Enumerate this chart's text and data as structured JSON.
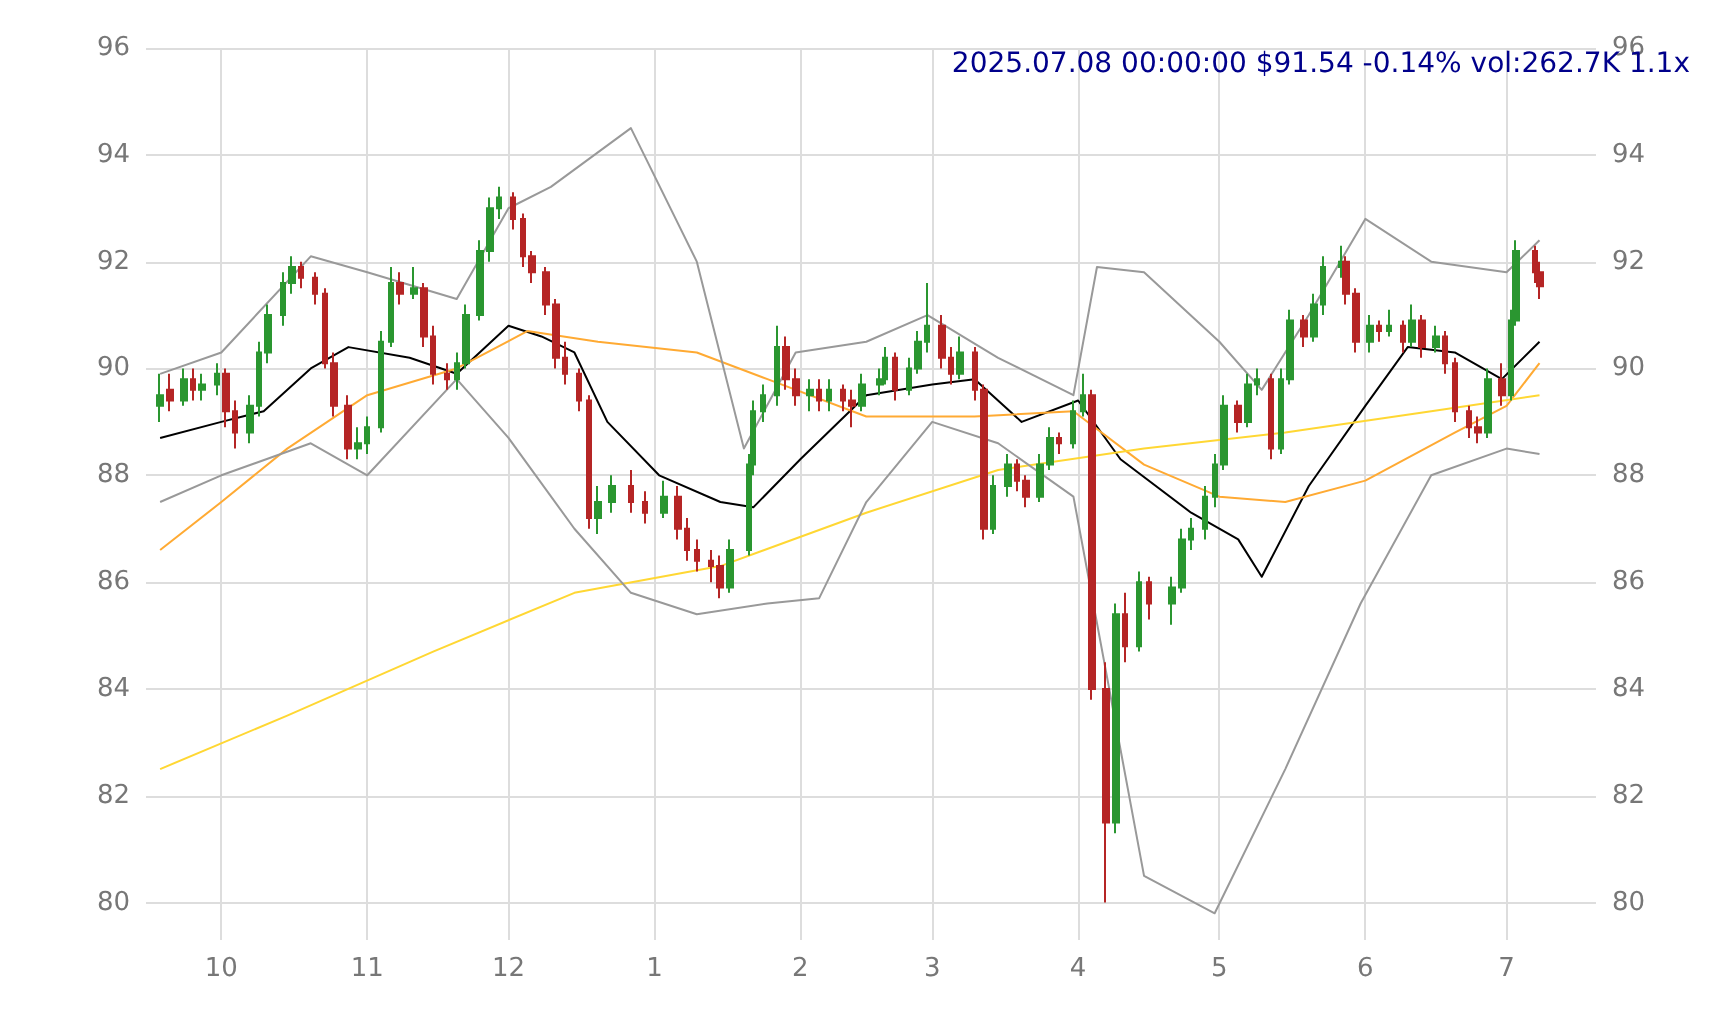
{
  "chart_data": {
    "type": "candlestick",
    "title": "2025.07.08 00:00:00 $91.54 -0.14% vol:262.7K 1.1x",
    "colors": [
      "#2a9630",
      "#b52525",
      "#2a9630",
      "#b52525",
      "#2a9630",
      "#2a9630",
      "#b52525",
      "#b52525",
      "#2a9630",
      "#2a9630",
      "#2a9630",
      "#2a9630",
      "#2a9630",
      "#b52525",
      "#b52525",
      "#b52525",
      "#b52525",
      "#b52525",
      "#2a9630",
      "#2a9630",
      "#2a9630",
      "#2a9630",
      "#b52525",
      "#2a9630",
      "#b52525",
      "#b52525",
      "#b52525",
      "#2a9630",
      "#2a9630",
      "#2a9630",
      "#2a9630",
      "#2a9630",
      "#b52525",
      "#b52525",
      "#b52525",
      "#b52525",
      "#b52525",
      "#b52525",
      "#b52525",
      "#b52525",
      "#2a9630",
      "#2a9630",
      "#b52525",
      "#b52525",
      "#2a9630",
      "#b52525",
      "#b52525",
      "#b52525",
      "#b52525",
      "#b52525",
      "#2a9630",
      "#2a9630",
      "#2a9630",
      "#2a9630",
      "#2a9630",
      "#b52525",
      "#b52525",
      "#2a9630",
      "#b52525",
      "#2a9630",
      "#b52525",
      "#b52525",
      "#2a9630",
      "#2a9630",
      "#2a9630",
      "#b52525",
      "#2a9630",
      "#2a9630",
      "#2a9630",
      "#b52525",
      "#b52525",
      "#2a9630",
      "#b52525",
      "#b52525",
      "#2a9630",
      "#2a9630",
      "#b52525",
      "#b52525",
      "#2a9630",
      "#2a9630",
      "#b52525",
      "#2a9630",
      "#2a9630",
      "#b52525",
      "#b52525",
      "#2a9630",
      "#b52525",
      "#2a9630",
      "#b52525",
      "#2a9630",
      "#2a9630",
      "#2a9630",
      "#2a9630",
      "#2a9630",
      "#2a9630",
      "#b52525",
      "#2a9630",
      "#2a9630",
      "#b52525",
      "#2a9630",
      "#2a9630",
      "#b52525",
      "#2a9630",
      "#2a9630",
      "#2a9630",
      "#b52525",
      "#b52525",
      "#2a9630",
      "#b52525",
      "#2a9630",
      "#b52525",
      "#2a9630",
      "#b52525",
      "#2a9630",
      "#b52525",
      "#b52525",
      "#b52525",
      "#b52525",
      "#2a9630",
      "#b52525",
      "#2a9630",
      "#2a9630",
      "#b52525",
      "#b52525"
    ],
    "x": [
      "2024-09-18",
      "2024-09-20",
      "2024-09-23",
      "2024-09-25",
      "2024-09-27",
      "2024-09-30",
      "2024-10-02",
      "2024-10-04",
      "2024-10-07",
      "2024-10-09",
      "2024-10-11",
      "2024-10-14",
      "2024-10-16",
      "2024-10-18",
      "2024-10-21",
      "2024-10-23",
      "2024-10-25",
      "2024-10-28",
      "2024-10-30",
      "2024-11-01",
      "2024-11-04",
      "2024-11-06",
      "2024-11-08",
      "2024-11-11",
      "2024-11-13",
      "2024-11-15",
      "2024-11-18",
      "2024-11-20",
      "2024-11-22",
      "2024-11-25",
      "2024-11-27",
      "2024-11-29",
      "2024-12-02",
      "2024-12-04",
      "2024-12-06",
      "2024-12-09",
      "2024-12-11",
      "2024-12-13",
      "2024-12-16",
      "2024-12-18",
      "2024-12-20",
      "2024-12-23",
      "2024-12-27",
      "2024-12-30",
      "2025-01-03",
      "2025-01-06",
      "2025-01-08",
      "2025-01-10",
      "2025-01-13",
      "2025-01-15",
      "2025-01-17",
      "2025-01-21",
      "2025-01-22",
      "2025-01-24",
      "2025-01-27",
      "2025-01-29",
      "2025-01-31",
      "2025-02-03",
      "2025-02-05",
      "2025-02-07",
      "2025-02-10",
      "2025-02-12",
      "2025-02-14",
      "2025-02-18",
      "2025-02-19",
      "2025-02-21",
      "2025-02-24",
      "2025-02-26",
      "2025-02-28",
      "2025-03-03",
      "2025-03-05",
      "2025-03-07",
      "2025-03-10",
      "2025-03-12",
      "2025-03-14",
      "2025-03-17",
      "2025-03-19",
      "2025-03-21",
      "2025-03-24",
      "2025-03-26",
      "2025-03-28",
      "2025-03-31",
      "2025-04-02",
      "2025-04-04",
      "2025-04-07",
      "2025-04-09",
      "2025-04-11",
      "2025-04-14",
      "2025-04-16",
      "2025-04-21",
      "2025-04-23",
      "2025-04-25",
      "2025-04-28",
      "2025-04-30",
      "2025-05-02",
      "2025-05-05",
      "2025-05-07",
      "2025-05-09",
      "2025-05-12",
      "2025-05-14",
      "2025-05-16",
      "2025-05-19",
      "2025-05-21",
      "2025-05-23",
      "2025-05-27",
      "2025-05-28",
      "2025-05-30",
      "2025-06-02",
      "2025-06-04",
      "2025-06-06",
      "2025-06-09",
      "2025-06-11",
      "2025-06-13",
      "2025-06-16",
      "2025-06-18",
      "2025-06-20",
      "2025-06-23",
      "2025-06-25",
      "2025-06-27",
      "2025-06-30",
      "2025-07-02",
      "2025-07-03",
      "2025-07-07",
      "2025-07-08"
    ],
    "ohlc": [
      [
        89.3,
        89.9,
        89.0,
        89.5
      ],
      [
        89.6,
        89.9,
        89.2,
        89.4
      ],
      [
        89.4,
        90.0,
        89.3,
        89.8
      ],
      [
        89.8,
        90.0,
        89.4,
        89.6
      ],
      [
        89.6,
        89.9,
        89.4,
        89.7
      ],
      [
        89.7,
        90.1,
        89.5,
        89.9
      ],
      [
        89.9,
        90.0,
        88.9,
        89.2
      ],
      [
        89.2,
        89.4,
        88.5,
        88.8
      ],
      [
        88.8,
        89.5,
        88.6,
        89.3
      ],
      [
        89.3,
        90.5,
        89.1,
        90.3
      ],
      [
        90.3,
        91.2,
        90.1,
        91.0
      ],
      [
        91.0,
        91.8,
        90.8,
        91.6
      ],
      [
        91.6,
        92.1,
        91.4,
        91.9
      ],
      [
        91.9,
        92.0,
        91.5,
        91.7
      ],
      [
        91.7,
        91.8,
        91.2,
        91.4
      ],
      [
        91.4,
        91.5,
        90.0,
        90.1
      ],
      [
        90.1,
        90.3,
        89.1,
        89.3
      ],
      [
        89.3,
        89.5,
        88.3,
        88.5
      ],
      [
        88.5,
        88.9,
        88.3,
        88.6
      ],
      [
        88.6,
        89.1,
        88.4,
        88.9
      ],
      [
        88.9,
        90.7,
        88.8,
        90.5
      ],
      [
        90.5,
        91.9,
        90.4,
        91.6
      ],
      [
        91.6,
        91.8,
        91.2,
        91.4
      ],
      [
        91.4,
        91.9,
        91.3,
        91.5
      ],
      [
        91.5,
        91.6,
        90.4,
        90.6
      ],
      [
        90.6,
        90.8,
        89.7,
        89.9
      ],
      [
        89.9,
        90.1,
        89.6,
        89.8
      ],
      [
        89.8,
        90.3,
        89.6,
        90.1
      ],
      [
        90.1,
        91.2,
        90.0,
        91.0
      ],
      [
        91.0,
        92.4,
        90.9,
        92.2
      ],
      [
        92.2,
        93.2,
        92.0,
        93.0
      ],
      [
        93.0,
        93.4,
        92.8,
        93.2
      ],
      [
        93.2,
        93.3,
        92.6,
        92.8
      ],
      [
        92.8,
        92.9,
        91.9,
        92.1
      ],
      [
        92.1,
        92.2,
        91.6,
        91.8
      ],
      [
        91.8,
        91.9,
        91.0,
        91.2
      ],
      [
        91.2,
        91.3,
        90.0,
        90.2
      ],
      [
        90.2,
        90.5,
        89.7,
        89.9
      ],
      [
        89.9,
        90.0,
        89.2,
        89.4
      ],
      [
        89.4,
        89.5,
        87.0,
        87.2
      ],
      [
        87.2,
        87.8,
        86.9,
        87.5
      ],
      [
        87.5,
        88.0,
        87.3,
        87.8
      ],
      [
        87.8,
        88.1,
        87.3,
        87.5
      ],
      [
        87.5,
        87.7,
        87.1,
        87.3
      ],
      [
        87.3,
        87.9,
        87.2,
        87.6
      ],
      [
        87.6,
        87.8,
        86.8,
        87.0
      ],
      [
        87.0,
        87.2,
        86.4,
        86.6
      ],
      [
        86.6,
        86.8,
        86.2,
        86.4
      ],
      [
        86.4,
        86.6,
        86.0,
        86.3
      ],
      [
        86.3,
        86.5,
        85.7,
        85.9
      ],
      [
        85.9,
        86.8,
        85.8,
        86.6
      ],
      [
        86.6,
        88.4,
        86.5,
        88.2
      ],
      [
        88.2,
        89.4,
        88.0,
        89.2
      ],
      [
        89.2,
        89.7,
        89.0,
        89.5
      ],
      [
        89.5,
        90.8,
        89.3,
        90.4
      ],
      [
        90.4,
        90.6,
        89.6,
        89.8
      ],
      [
        89.8,
        90.0,
        89.3,
        89.5
      ],
      [
        89.5,
        89.8,
        89.2,
        89.6
      ],
      [
        89.6,
        89.8,
        89.2,
        89.4
      ],
      [
        89.4,
        89.8,
        89.2,
        89.6
      ],
      [
        89.6,
        89.7,
        89.2,
        89.4
      ],
      [
        89.4,
        89.6,
        88.9,
        89.3
      ],
      [
        89.3,
        89.9,
        89.2,
        89.7
      ],
      [
        89.7,
        90.0,
        89.5,
        89.8
      ],
      [
        89.8,
        90.4,
        89.7,
        90.2
      ],
      [
        90.2,
        90.3,
        89.4,
        89.6
      ],
      [
        89.6,
        90.2,
        89.5,
        90.0
      ],
      [
        90.0,
        90.7,
        89.9,
        90.5
      ],
      [
        90.5,
        91.6,
        90.3,
        90.8
      ],
      [
        90.8,
        91.0,
        90.0,
        90.2
      ],
      [
        90.2,
        90.4,
        89.7,
        89.9
      ],
      [
        89.9,
        90.6,
        89.8,
        90.3
      ],
      [
        90.3,
        90.4,
        89.4,
        89.6
      ],
      [
        89.6,
        89.7,
        86.8,
        87.0
      ],
      [
        87.0,
        88.0,
        86.9,
        87.8
      ],
      [
        87.8,
        88.4,
        87.6,
        88.2
      ],
      [
        88.2,
        88.3,
        87.7,
        87.9
      ],
      [
        87.9,
        88.0,
        87.4,
        87.6
      ],
      [
        87.6,
        88.4,
        87.5,
        88.2
      ],
      [
        88.2,
        88.9,
        88.1,
        88.7
      ],
      [
        88.7,
        88.8,
        88.4,
        88.6
      ],
      [
        88.6,
        89.4,
        88.5,
        89.2
      ],
      [
        89.2,
        89.9,
        89.1,
        89.5
      ],
      [
        89.5,
        89.6,
        83.8,
        84.0
      ],
      [
        84.0,
        84.5,
        80.0,
        81.5
      ],
      [
        81.5,
        85.6,
        81.3,
        85.4
      ],
      [
        85.4,
        85.8,
        84.5,
        84.8
      ],
      [
        84.8,
        86.2,
        84.7,
        86.0
      ],
      [
        86.0,
        86.1,
        85.3,
        85.6
      ],
      [
        85.6,
        86.1,
        85.2,
        85.9
      ],
      [
        85.9,
        87.0,
        85.8,
        86.8
      ],
      [
        86.8,
        87.2,
        86.6,
        87.0
      ],
      [
        87.0,
        87.8,
        86.8,
        87.6
      ],
      [
        87.6,
        88.4,
        87.4,
        88.2
      ],
      [
        88.2,
        89.5,
        88.1,
        89.3
      ],
      [
        89.3,
        89.4,
        88.8,
        89.0
      ],
      [
        89.0,
        89.9,
        88.9,
        89.7
      ],
      [
        89.7,
        90.0,
        89.5,
        89.8
      ],
      [
        89.8,
        89.9,
        88.3,
        88.5
      ],
      [
        88.5,
        90.0,
        88.4,
        89.8
      ],
      [
        89.8,
        91.1,
        89.7,
        90.9
      ],
      [
        90.9,
        91.0,
        90.4,
        90.6
      ],
      [
        90.6,
        91.4,
        90.5,
        91.2
      ],
      [
        91.2,
        92.1,
        91.0,
        91.9
      ],
      [
        91.9,
        92.3,
        91.7,
        92.0
      ],
      [
        92.0,
        92.1,
        91.2,
        91.4
      ],
      [
        91.4,
        91.5,
        90.3,
        90.5
      ],
      [
        90.5,
        91.0,
        90.3,
        90.8
      ],
      [
        90.8,
        90.9,
        90.5,
        90.7
      ],
      [
        90.7,
        91.1,
        90.6,
        90.8
      ],
      [
        90.8,
        90.9,
        90.3,
        90.5
      ],
      [
        90.5,
        91.2,
        90.4,
        90.9
      ],
      [
        90.9,
        91.0,
        90.2,
        90.4
      ],
      [
        90.4,
        90.8,
        90.3,
        90.6
      ],
      [
        90.6,
        90.7,
        89.9,
        90.1
      ],
      [
        90.1,
        90.2,
        89.0,
        89.2
      ],
      [
        89.2,
        89.3,
        88.7,
        88.9
      ],
      [
        88.9,
        89.1,
        88.6,
        88.8
      ],
      [
        88.8,
        90.0,
        88.7,
        89.8
      ],
      [
        89.8,
        90.1,
        89.3,
        89.5
      ],
      [
        89.5,
        91.1,
        89.4,
        90.9
      ],
      [
        90.9,
        92.4,
        90.8,
        92.2
      ],
      [
        92.2,
        92.3,
        91.6,
        91.8
      ],
      [
        91.8,
        92.0,
        91.3,
        91.54
      ]
    ],
    "series": [
      {
        "type": "line",
        "color": "#000000",
        "x": [
          "2024-09-18",
          "2024-10-01",
          "2024-10-10",
          "2024-10-20",
          "2024-10-28",
          "2024-11-10",
          "2024-11-20",
          "2024-12-01",
          "2024-12-08",
          "2024-12-15",
          "2024-12-22",
          "2025-01-02",
          "2025-01-15",
          "2025-01-22",
          "2025-02-01",
          "2025-02-15",
          "2025-03-01",
          "2025-03-10",
          "2025-03-20",
          "2025-04-01",
          "2025-04-10",
          "2025-04-25",
          "2025-05-05",
          "2025-05-10",
          "2025-05-20",
          "2025-06-01",
          "2025-06-10",
          "2025-06-20",
          "2025-06-30",
          "2025-07-08"
        ],
        "values": [
          88.7,
          89.0,
          89.2,
          90.0,
          90.4,
          90.2,
          89.9,
          90.8,
          90.6,
          90.3,
          89.0,
          88.0,
          87.5,
          87.4,
          88.3,
          89.5,
          89.7,
          89.8,
          89.0,
          89.4,
          88.3,
          87.3,
          86.8,
          86.1,
          87.8,
          89.3,
          90.4,
          90.3,
          89.8,
          90.5
        ]
      },
      {
        "type": "line",
        "color": "#ffaa33",
        "x": [
          "2024-09-18",
          "2024-10-01",
          "2024-10-15",
          "2024-11-01",
          "2024-11-20",
          "2024-12-05",
          "2024-12-20",
          "2025-01-10",
          "2025-01-25",
          "2025-02-15",
          "2025-03-10",
          "2025-03-31",
          "2025-04-15",
          "2025-05-01",
          "2025-05-15",
          "2025-06-01",
          "2025-06-20",
          "2025-07-01",
          "2025-07-08"
        ],
        "values": [
          86.6,
          87.5,
          88.5,
          89.5,
          90.0,
          90.7,
          90.5,
          90.3,
          89.8,
          89.1,
          89.1,
          89.2,
          88.2,
          87.6,
          87.5,
          87.9,
          88.8,
          89.3,
          90.1
        ]
      },
      {
        "type": "line",
        "color": "#ffd733",
        "x": [
          "2024-09-18",
          "2024-10-15",
          "2024-11-15",
          "2024-12-15",
          "2025-01-15",
          "2025-02-15",
          "2025-03-15",
          "2025-04-15",
          "2025-05-15",
          "2025-06-15",
          "2025-07-08"
        ],
        "values": [
          82.5,
          83.5,
          84.7,
          85.8,
          86.3,
          87.3,
          88.1,
          88.5,
          88.8,
          89.2,
          89.5
        ]
      },
      {
        "type": "line",
        "color": "#999999",
        "x": [
          "2024-09-18",
          "2024-10-01",
          "2024-10-20",
          "2024-11-01",
          "2024-11-20",
          "2024-12-01",
          "2024-12-10",
          "2024-12-27",
          "2025-01-10",
          "2025-01-20",
          "2025-01-31",
          "2025-02-15",
          "2025-02-28",
          "2025-03-15",
          "2025-03-31",
          "2025-04-05",
          "2025-04-15",
          "2025-05-01",
          "2025-05-10",
          "2025-05-20",
          "2025-06-01",
          "2025-06-15",
          "2025-07-01",
          "2025-07-08"
        ],
        "values": [
          89.9,
          90.3,
          92.1,
          91.8,
          91.3,
          93.0,
          93.4,
          94.5,
          92.0,
          88.5,
          90.3,
          90.5,
          91.0,
          90.2,
          89.5,
          91.9,
          91.8,
          90.5,
          89.6,
          91.0,
          92.8,
          92.0,
          91.8,
          92.4
        ]
      },
      {
        "type": "line",
        "color": "#999999",
        "x": [
          "2024-09-18",
          "2024-10-01",
          "2024-10-20",
          "2024-11-01",
          "2024-11-20",
          "2024-12-01",
          "2024-12-15",
          "2024-12-27",
          "2025-01-10",
          "2025-01-25",
          "2025-02-05",
          "2025-02-15",
          "2025-03-01",
          "2025-03-15",
          "2025-03-31",
          "2025-04-15",
          "2025-04-30",
          "2025-05-15",
          "2025-05-31",
          "2025-06-15",
          "2025-07-01",
          "2025-07-08"
        ],
        "values": [
          87.5,
          88.0,
          88.6,
          88.0,
          89.8,
          88.7,
          87.0,
          85.8,
          85.4,
          85.6,
          85.7,
          87.5,
          89.0,
          88.6,
          87.6,
          80.5,
          79.8,
          82.5,
          85.6,
          88.0,
          88.5,
          88.4
        ]
      }
    ],
    "xlim": [
      "2024-09-15",
      "2025-07-20"
    ],
    "xticks": [
      {
        "value": "2024-10-01",
        "label": "10"
      },
      {
        "value": "2024-11-01",
        "label": "11"
      },
      {
        "value": "2024-12-01",
        "label": "12"
      },
      {
        "value": "2025-01-01",
        "label": "1"
      },
      {
        "value": "2025-02-01",
        "label": "2"
      },
      {
        "value": "2025-03-01",
        "label": "3"
      },
      {
        "value": "2025-04-01",
        "label": "4"
      },
      {
        "value": "2025-05-01",
        "label": "5"
      },
      {
        "value": "2025-06-01",
        "label": "6"
      },
      {
        "value": "2025-07-01",
        "label": "7"
      }
    ],
    "ylim": [
      79.3,
      96
    ],
    "yticks": [
      80,
      82,
      84,
      86,
      88,
      90,
      92,
      94,
      96
    ],
    "y2lim": [
      79.3,
      96
    ],
    "y2ticks": [
      80,
      82,
      84,
      86,
      88,
      90,
      92,
      94,
      96
    ],
    "grid": true
  }
}
